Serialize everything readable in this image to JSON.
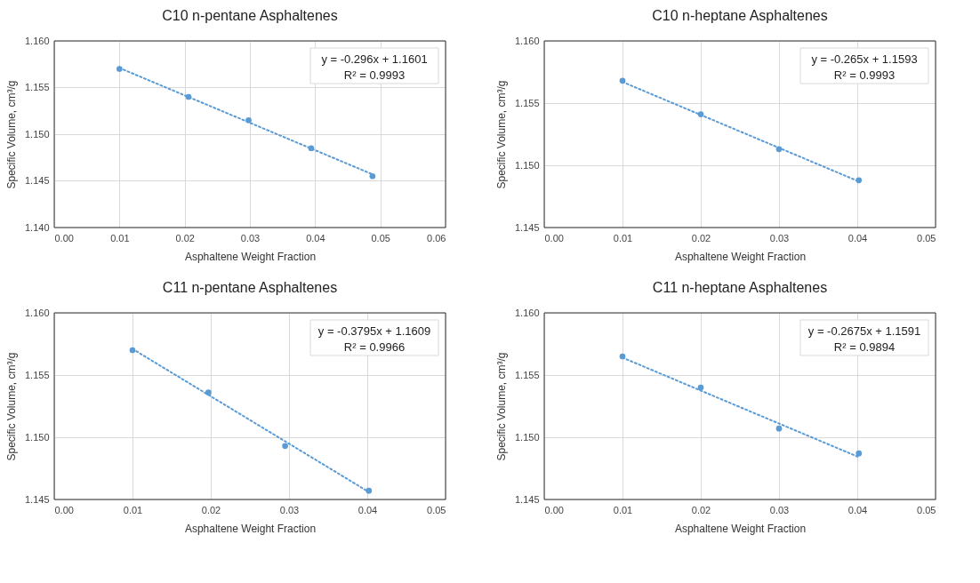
{
  "chart_data": [
    {
      "type": "scatter",
      "title": "C10 n-pentane  Asphaltenes",
      "xlabel": "Asphaltene Weight Fraction",
      "ylabel": "Specific Volume, cm³/g",
      "xlim": [
        0,
        0.06
      ],
      "xticks": [
        {
          "value": 0,
          "label": "0.00"
        },
        {
          "value": 0.01,
          "label": "0.01"
        },
        {
          "value": 0.02,
          "label": "0.02"
        },
        {
          "value": 0.03,
          "label": "0.03"
        },
        {
          "value": 0.04,
          "label": "0.04"
        },
        {
          "value": 0.05,
          "label": "0.05"
        },
        {
          "value": 0.06,
          "label": "0.06"
        }
      ],
      "ylim": [
        1.14,
        1.16
      ],
      "yticks": [
        {
          "value": 1.14,
          "label": "1.140"
        },
        {
          "value": 1.145,
          "label": "1.145"
        },
        {
          "value": 1.15,
          "label": "1.150"
        },
        {
          "value": 1.155,
          "label": "1.155"
        },
        {
          "value": 1.16,
          "label": "1.160"
        }
      ],
      "grid": true,
      "annotations": [
        "y = -0.296x + 1.1601",
        "R² = 0.9993"
      ],
      "series": [
        {
          "marker": "circle",
          "color": "#5b9bd5",
          "x": [
            0.01,
            0.0206,
            0.0298,
            0.0394,
            0.0488
          ],
          "values": [
            1.157,
            1.154,
            1.1515,
            1.1485,
            1.1455
          ]
        },
        {
          "type": "line",
          "marker": "none",
          "line_style": "dotted",
          "color": "#5b9bd5",
          "x": [
            0.01,
            0.0488
          ],
          "values": [
            1.1571,
            1.1457
          ]
        }
      ]
    },
    {
      "type": "scatter",
      "title": "C10 n-heptane  Asphaltenes",
      "xlabel": "Asphaltene Weight Fraction",
      "ylabel": "Specific Volume, cm³/g",
      "xlim": [
        0,
        0.05
      ],
      "xticks": [
        {
          "value": 0,
          "label": "0.00"
        },
        {
          "value": 0.01,
          "label": "0.01"
        },
        {
          "value": 0.02,
          "label": "0.02"
        },
        {
          "value": 0.03,
          "label": "0.03"
        },
        {
          "value": 0.04,
          "label": "0.04"
        },
        {
          "value": 0.05,
          "label": "0.05"
        }
      ],
      "ylim": [
        1.145,
        1.16
      ],
      "yticks": [
        {
          "value": 1.145,
          "label": "1.145"
        },
        {
          "value": 1.15,
          "label": "1.150"
        },
        {
          "value": 1.155,
          "label": "1.155"
        },
        {
          "value": 1.16,
          "label": "1.160"
        }
      ],
      "grid": true,
      "annotations": [
        "y = -0.265x + 1.1593",
        "R² = 0.9993"
      ],
      "series": [
        {
          "marker": "circle",
          "color": "#5b9bd5",
          "x": [
            0.01,
            0.02,
            0.03,
            0.0402
          ],
          "values": [
            1.1568,
            1.1541,
            1.1513,
            1.1488
          ]
        },
        {
          "type": "line",
          "marker": "none",
          "line_style": "dotted",
          "color": "#5b9bd5",
          "x": [
            0.01,
            0.0402
          ],
          "values": [
            1.1567,
            1.1487
          ]
        }
      ]
    },
    {
      "type": "scatter",
      "title": "C11 n-pentane  Asphaltenes",
      "xlabel": "Asphaltene Weight Fraction",
      "ylabel": "Specific Volume, cm³/g",
      "xlim": [
        0,
        0.05
      ],
      "xticks": [
        {
          "value": 0,
          "label": "0.00"
        },
        {
          "value": 0.01,
          "label": "0.01"
        },
        {
          "value": 0.02,
          "label": "0.02"
        },
        {
          "value": 0.03,
          "label": "0.03"
        },
        {
          "value": 0.04,
          "label": "0.04"
        },
        {
          "value": 0.05,
          "label": "0.05"
        }
      ],
      "ylim": [
        1.145,
        1.16
      ],
      "yticks": [
        {
          "value": 1.145,
          "label": "1.145"
        },
        {
          "value": 1.15,
          "label": "1.150"
        },
        {
          "value": 1.155,
          "label": "1.155"
        },
        {
          "value": 1.16,
          "label": "1.160"
        }
      ],
      "grid": true,
      "annotations": [
        "y = -0.3795x + 1.1609",
        "R² = 0.9966"
      ],
      "series": [
        {
          "marker": "circle",
          "color": "#5b9bd5",
          "x": [
            0.01,
            0.0197,
            0.0295,
            0.0402
          ],
          "values": [
            1.157,
            1.1536,
            1.1493,
            1.1457
          ]
        },
        {
          "type": "line",
          "marker": "none",
          "line_style": "dotted",
          "color": "#5b9bd5",
          "x": [
            0.01,
            0.0402
          ],
          "values": [
            1.1571,
            1.1456
          ]
        }
      ]
    },
    {
      "type": "scatter",
      "title": "C11 n-heptane  Asphaltenes",
      "xlabel": "Asphaltene Weight Fraction",
      "ylabel": "Specific Volume, cm³/g",
      "xlim": [
        0,
        0.05
      ],
      "xticks": [
        {
          "value": 0,
          "label": "0.00"
        },
        {
          "value": 0.01,
          "label": "0.01"
        },
        {
          "value": 0.02,
          "label": "0.02"
        },
        {
          "value": 0.03,
          "label": "0.03"
        },
        {
          "value": 0.04,
          "label": "0.04"
        },
        {
          "value": 0.05,
          "label": "0.05"
        }
      ],
      "ylim": [
        1.145,
        1.16
      ],
      "yticks": [
        {
          "value": 1.145,
          "label": "1.145"
        },
        {
          "value": 1.15,
          "label": "1.150"
        },
        {
          "value": 1.155,
          "label": "1.155"
        },
        {
          "value": 1.16,
          "label": "1.160"
        }
      ],
      "grid": true,
      "annotations": [
        "y = -0.2675x + 1.1591",
        "R² = 0.9894"
      ],
      "series": [
        {
          "marker": "circle",
          "color": "#5b9bd5",
          "x": [
            0.01,
            0.02,
            0.03,
            0.0402
          ],
          "values": [
            1.1565,
            1.154,
            1.1507,
            1.1487
          ]
        },
        {
          "type": "line",
          "marker": "none",
          "line_style": "dotted",
          "color": "#5b9bd5",
          "x": [
            0.01,
            0.0402
          ],
          "values": [
            1.1564,
            1.1484
          ]
        }
      ]
    }
  ]
}
